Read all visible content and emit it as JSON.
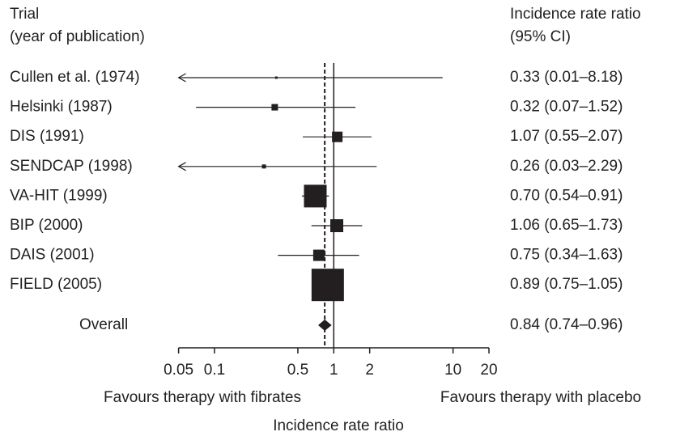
{
  "chart_data": {
    "type": "forest",
    "header_left": [
      "Trial",
      "(year of publication)"
    ],
    "header_right": [
      "Incidence rate ratio",
      "(95% CI)"
    ],
    "categories": [
      "Cullen et al. (1974)",
      "Helsinki (1987)",
      "DIS (1991)",
      "SENDCAP (1998)",
      "VA-HIT (1999)",
      "BIP (2000)",
      "DAIS (2001)",
      "FIELD (2005)"
    ],
    "values": [
      0.33,
      0.32,
      1.07,
      0.26,
      0.7,
      1.06,
      0.75,
      0.89
    ],
    "lower": [
      0.01,
      0.07,
      0.55,
      0.03,
      0.54,
      0.65,
      0.34,
      0.75
    ],
    "upper": [
      8.18,
      1.52,
      2.07,
      2.29,
      0.91,
      1.73,
      1.63,
      1.05
    ],
    "value_labels": [
      "0.33 (0.01–8.18)",
      "0.32 (0.07–1.52)",
      "1.07 (0.55–2.07)",
      "0.26 (0.03–2.29)",
      "0.70 (0.54–0.91)",
      "1.06 (0.65–1.73)",
      "0.75 (0.34–1.63)",
      "0.89 (0.75–1.05)"
    ],
    "weights": [
      3,
      8,
      13,
      5,
      28,
      16,
      14,
      40
    ],
    "overall": {
      "label": "Overall",
      "value": 0.84,
      "lower": 0.74,
      "upper": 0.96,
      "value_label": "0.84 (0.74–0.96)"
    },
    "xlim": [
      0.05,
      20
    ],
    "xticks": [
      0.05,
      0.1,
      0.5,
      1,
      2,
      10,
      20
    ],
    "log_x": true,
    "xlabel": "Incidence rate ratio",
    "left_label": "Favours therapy with fibrates",
    "right_label": "Favours therapy with placebo",
    "color": "#231f20"
  }
}
